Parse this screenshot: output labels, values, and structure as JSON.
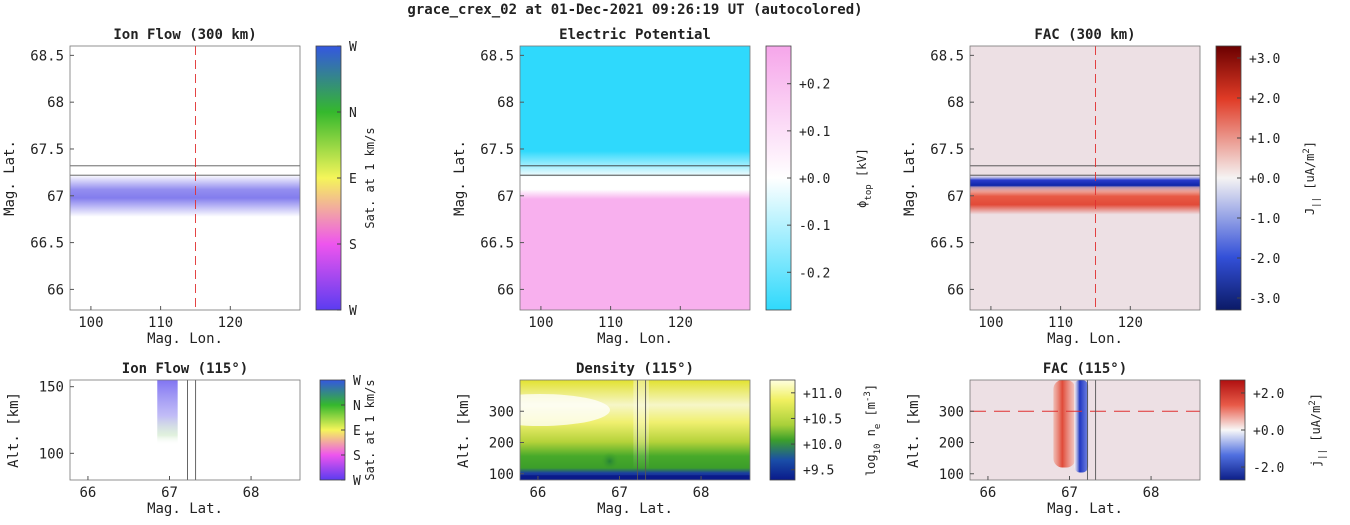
{
  "page_title": "grace_crex_02 at 01-Dec-2021 09:26:19 UT (autocolored)",
  "chart_data": [
    {
      "id": "ion-flow-300",
      "type": "heatmap",
      "title": "Ion Flow (300 km)",
      "xlabel": "Mag. Lon.",
      "ylabel": "Mag. Lat.",
      "xlim": [
        97,
        130
      ],
      "ylim": [
        65.78,
        68.6
      ],
      "xticks": [
        "100",
        "110",
        "120"
      ],
      "xtick_values": [
        100,
        110,
        120
      ],
      "yticks": [
        "68.5",
        "68",
        "67.5",
        "67",
        "66.5",
        "66"
      ],
      "ytick_values": [
        68.5,
        68.0,
        67.5,
        67.0,
        66.5,
        66.0
      ],
      "band": {
        "lat_center": 67.0,
        "lat_halfwidth": 0.15,
        "color": "#5a52e8"
      },
      "hlines": [
        67.32,
        67.22
      ],
      "vline": 115,
      "colorbar": {
        "label": "Sat. at 1 km/s",
        "ticks": [
          "W",
          "N",
          "E",
          "S",
          "W"
        ],
        "colors": [
          "#5b3cf0",
          "#ee55ee",
          "#f5f55a",
          "#35b82d",
          "#3457e0"
        ]
      }
    },
    {
      "id": "electric-potential",
      "type": "heatmap",
      "title": "Electric Potential",
      "xlabel": "Mag. Lon.",
      "ylabel": "Mag. Lat.",
      "xlim": [
        97,
        130
      ],
      "ylim": [
        65.78,
        68.6
      ],
      "xticks": [
        "100",
        "110",
        "120"
      ],
      "xtick_values": [
        100,
        110,
        120
      ],
      "yticks": [
        "68.5",
        "68",
        "67.5",
        "67",
        "66.5",
        "66"
      ],
      "ytick_values": [
        68.5,
        68.0,
        67.5,
        67.0,
        66.5,
        66.0
      ],
      "upper_color": "#2fd9fc",
      "lower_color": "#f8b0ee",
      "transition_lat": 67.05,
      "hlines": [
        67.32,
        67.22
      ],
      "colorbar": {
        "label_parts": [
          "ϕ",
          "top",
          " [kV]"
        ],
        "range": [
          -0.28,
          0.28
        ],
        "ticks": [
          "+0.2",
          "+0.1",
          "+0.0",
          "-0.1",
          "-0.2"
        ],
        "tick_values": [
          0.2,
          0.1,
          0.0,
          -0.1,
          -0.2
        ]
      }
    },
    {
      "id": "fac-300",
      "type": "heatmap",
      "title": "FAC (300 km)",
      "xlabel": "Mag. Lon.",
      "ylabel": "Mag. Lat.",
      "xlim": [
        97,
        130
      ],
      "ylim": [
        65.78,
        68.6
      ],
      "xticks": [
        "100",
        "110",
        "120"
      ],
      "xtick_values": [
        100,
        110,
        120
      ],
      "yticks": [
        "68.5",
        "68",
        "67.5",
        "67",
        "66.5",
        "66"
      ],
      "ytick_values": [
        68.5,
        68.0,
        67.5,
        67.0,
        66.5,
        66.0
      ],
      "background": "#ede0e4",
      "blue_band_lat": 67.13,
      "red_band_lat": 66.95,
      "hlines": [
        67.32,
        67.22
      ],
      "vline": 115,
      "colorbar": {
        "label_parts": [
          "J",
          "||",
          " [uA/m",
          "2",
          "]"
        ],
        "range": [
          -3.3,
          3.3
        ],
        "ticks": [
          "+3.0",
          "+2.0",
          "+1.0",
          "+0.0",
          "-1.0",
          "-2.0",
          "-3.0"
        ],
        "tick_values": [
          3,
          2,
          1,
          0,
          -1,
          -2,
          -3
        ]
      }
    },
    {
      "id": "ion-flow-115",
      "type": "heatmap",
      "title": "Ion Flow (115°)",
      "xlabel": "Mag. Lat.",
      "ylabel": "Alt. [km]",
      "xlim": [
        65.78,
        68.6
      ],
      "ylim": [
        80,
        155
      ],
      "xticks": [
        "66",
        "67",
        "68"
      ],
      "xtick_values": [
        66,
        67,
        68
      ],
      "yticks": [
        "150",
        "100"
      ],
      "ytick_values": [
        150,
        100
      ],
      "vlines": [
        67.22,
        67.32
      ],
      "colorbar": {
        "label": "Sat. at 1 km/s",
        "ticks": [
          "W",
          "N",
          "E",
          "S",
          "W"
        ]
      }
    },
    {
      "id": "density-115",
      "type": "heatmap",
      "title": "Density (115°)",
      "xlabel": "Mag. Lat.",
      "ylabel": "Alt. [km]",
      "xlim": [
        65.78,
        68.6
      ],
      "ylim": [
        80,
        400
      ],
      "xticks": [
        "66",
        "67",
        "68"
      ],
      "xtick_values": [
        66,
        67,
        68
      ],
      "yticks": [
        "300",
        "200",
        "100"
      ],
      "ytick_values": [
        300,
        200,
        100
      ],
      "vlines": [
        67.22,
        67.32
      ],
      "colorbar": {
        "label_parts": [
          "log",
          "10",
          " n",
          "e",
          " [m",
          "-3",
          "]"
        ],
        "range": [
          9.3,
          11.25
        ],
        "ticks": [
          "+11.0",
          "+10.5",
          "+10.0",
          "+9.5"
        ],
        "tick_values": [
          11.0,
          10.5,
          10.0,
          9.5
        ]
      }
    },
    {
      "id": "fac-115",
      "type": "heatmap",
      "title": "FAC (115°)",
      "xlabel": "Mag. Lat.",
      "ylabel": "Alt. [km]",
      "xlim": [
        65.78,
        68.6
      ],
      "ylim": [
        80,
        400
      ],
      "xticks": [
        "66",
        "67",
        "68"
      ],
      "xtick_values": [
        66,
        67,
        68
      ],
      "yticks": [
        "300",
        "200",
        "100"
      ],
      "ytick_values": [
        300,
        200,
        100
      ],
      "background": "#ede0e4",
      "red_column_lat": 66.95,
      "blue_column_lat": 67.13,
      "column_alt": [
        120,
        400
      ],
      "hline_alt": 300,
      "vlines": [
        67.22,
        67.32
      ],
      "colorbar": {
        "label_parts": [
          "j",
          "||",
          " [uA/m",
          "2",
          "]"
        ],
        "range": [
          -2.7,
          2.7
        ],
        "ticks": [
          "+2.0",
          "+0.0",
          "-2.0"
        ],
        "tick_values": [
          2,
          0,
          -2
        ]
      }
    }
  ]
}
